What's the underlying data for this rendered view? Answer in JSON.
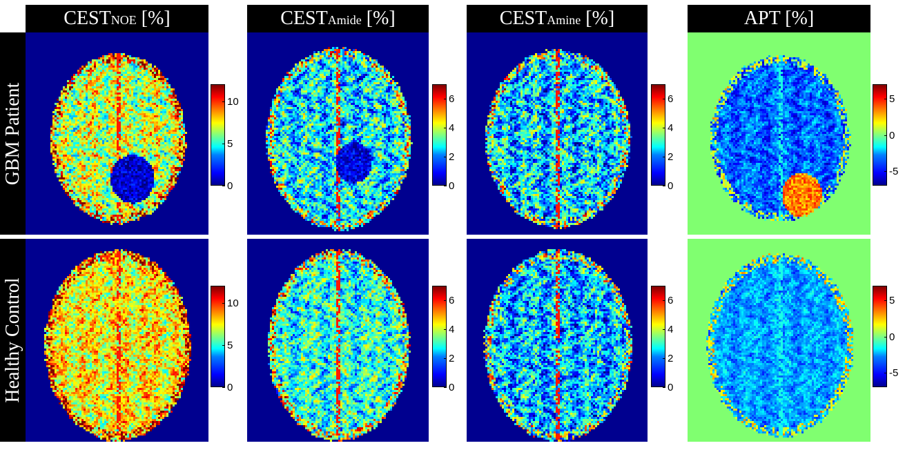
{
  "columns": [
    {
      "main": "CEST",
      "sub": "NOE",
      "unit": " [%]"
    },
    {
      "main": "CEST",
      "sub": "Amide",
      "unit": " [%]"
    },
    {
      "main": "CEST",
      "sub": "Amine",
      "unit": " [%]"
    },
    {
      "main": "APT",
      "sub": "",
      "unit": " [%]"
    }
  ],
  "rows": [
    {
      "label": "GBM Patient"
    },
    {
      "label": "Healthy Control"
    }
  ],
  "colorbars": [
    {
      "ticks": [
        "10",
        "5",
        "0"
      ],
      "range": [
        0,
        12
      ],
      "tick_values": [
        10,
        5,
        0
      ]
    },
    {
      "ticks": [
        "6",
        "4",
        "2",
        "0"
      ],
      "range": [
        0,
        7
      ],
      "tick_values": [
        6,
        4,
        2,
        0
      ]
    },
    {
      "ticks": [
        "6",
        "4",
        "2",
        "0"
      ],
      "range": [
        0,
        7
      ],
      "tick_values": [
        6,
        4,
        2,
        0
      ]
    },
    {
      "ticks": [
        "5",
        "0",
        "-5"
      ],
      "range": [
        -7,
        7
      ],
      "tick_values": [
        5,
        0,
        -5
      ]
    }
  ],
  "colors": {
    "background_cest": "#00008f",
    "background_apt": "#80ff70",
    "header_bg": "#000000",
    "header_text": "#ffffff"
  }
}
